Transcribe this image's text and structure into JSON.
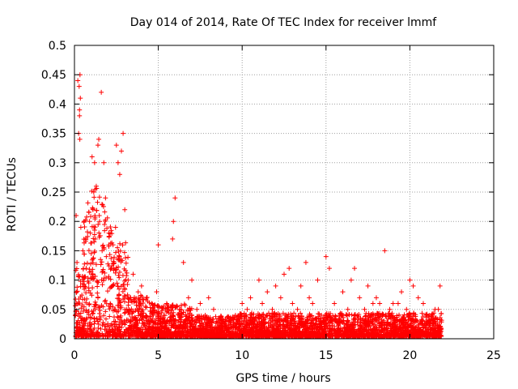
{
  "chart_data": {
    "type": "scatter",
    "title": "Day 014 of 2014, Rate Of TEC Index for receiver lmmf",
    "xlabel": "GPS time / hours",
    "ylabel": "ROTI / TECUs",
    "xlim": [
      0,
      25
    ],
    "ylim": [
      0,
      0.5
    ],
    "xticks": [
      "0",
      "5",
      "10",
      "15",
      "20",
      "25"
    ],
    "yticks": [
      "0",
      "0.05",
      "0.1",
      "0.15",
      "0.2",
      "0.25",
      "0.3",
      "0.35",
      "0.4",
      "0.45",
      "0.5"
    ],
    "grid": true,
    "marker": "+",
    "color": "#ff0000",
    "series": [
      {
        "name": "ROTI",
        "x": [
          0.1,
          0.15,
          0.2,
          0.25,
          0.28,
          0.3,
          0.32,
          0.35,
          0.33,
          0.3,
          0.38,
          0.9,
          1.05,
          1.2,
          1.3,
          1.4,
          1.45,
          1.6,
          1.75,
          1.85,
          2.5,
          2.6,
          2.7,
          2.8,
          2.9,
          3.0,
          6.0,
          5.9,
          5.85,
          5.0,
          6.5,
          7.0,
          7.5,
          8.0,
          10.5,
          11.0,
          11.5,
          12.0,
          12.5,
          12.8,
          13.5,
          13.8,
          14.5,
          15.0,
          15.2,
          16.0,
          16.5,
          16.7,
          17.5,
          18.2,
          18.5,
          19.0,
          19.5,
          20.0,
          20.2,
          21.0,
          21.5,
          21.8,
          0.5,
          0.7,
          0.95,
          1.1,
          1.15,
          1.25,
          1.5,
          1.65,
          1.9,
          2.05,
          2.2,
          2.3,
          2.45,
          3.2,
          3.5,
          3.8,
          4.0,
          4.3,
          4.6,
          4.9,
          5.5,
          6.3,
          6.8,
          7.3,
          7.8,
          8.3,
          9.0,
          9.6,
          10.0,
          10.3,
          11.2,
          11.8,
          12.3,
          13.0,
          13.3,
          14.0,
          14.2,
          15.5,
          16.3,
          17.0,
          17.3,
          17.8,
          18.0,
          18.8,
          19.3,
          19.8,
          20.5,
          20.8,
          21.3,
          21.7
        ],
        "y": [
          0.21,
          0.13,
          0.44,
          0.35,
          0.43,
          0.38,
          0.34,
          0.41,
          0.45,
          0.39,
          0.19,
          0.2,
          0.31,
          0.3,
          0.26,
          0.33,
          0.34,
          0.42,
          0.3,
          0.24,
          0.33,
          0.3,
          0.28,
          0.32,
          0.35,
          0.22,
          0.24,
          0.2,
          0.17,
          0.16,
          0.13,
          0.1,
          0.06,
          0.07,
          0.07,
          0.1,
          0.08,
          0.09,
          0.11,
          0.12,
          0.09,
          0.13,
          0.1,
          0.14,
          0.12,
          0.08,
          0.1,
          0.12,
          0.09,
          0.06,
          0.15,
          0.06,
          0.08,
          0.1,
          0.09,
          0.04,
          0.05,
          0.09,
          0.15,
          0.12,
          0.18,
          0.22,
          0.25,
          0.17,
          0.2,
          0.15,
          0.14,
          0.18,
          0.12,
          0.16,
          0.19,
          0.1,
          0.11,
          0.08,
          0.09,
          0.07,
          0.06,
          0.08,
          0.06,
          0.05,
          0.07,
          0.05,
          0.04,
          0.05,
          0.03,
          0.04,
          0.06,
          0.05,
          0.06,
          0.05,
          0.07,
          0.06,
          0.05,
          0.07,
          0.06,
          0.06,
          0.05,
          0.07,
          0.05,
          0.06,
          0.07,
          0.05,
          0.06,
          0.05,
          0.07,
          0.06,
          0.04,
          0.05
        ]
      }
    ]
  }
}
